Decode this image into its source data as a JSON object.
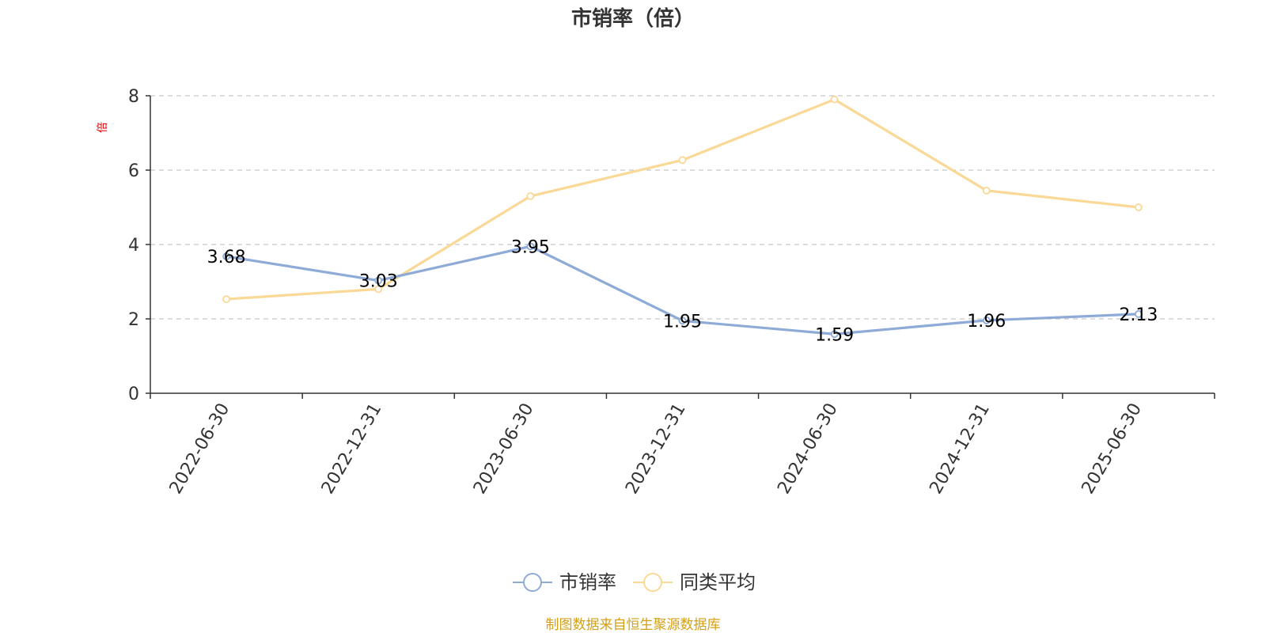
{
  "chart_data": {
    "type": "line",
    "title": "市销率（倍）",
    "ylabel": "倍",
    "ylim": [
      0,
      8
    ],
    "yticks": [
      0,
      2,
      4,
      6,
      8
    ],
    "grid": true,
    "legend_position": "bottom",
    "categories": [
      "2022-06-30",
      "2022-12-31",
      "2023-06-30",
      "2023-12-31",
      "2024-06-30",
      "2024-12-31",
      "2025-06-30"
    ],
    "series": [
      {
        "name": "市销率",
        "color": "#8eabd8",
        "values": [
          3.68,
          3.03,
          3.95,
          1.95,
          1.59,
          1.96,
          2.13
        ],
        "labels": [
          "3.68",
          "3.03",
          "3.95",
          "1.95",
          "1.59",
          "1.96",
          "2.13"
        ],
        "show_labels": true
      },
      {
        "name": "同类平均",
        "color": "#fad896",
        "values": [
          2.53,
          2.8,
          5.3,
          6.27,
          7.9,
          5.45,
          5.0
        ],
        "show_labels": false
      }
    ]
  },
  "source_note": "制图数据来自恒生聚源数据库"
}
